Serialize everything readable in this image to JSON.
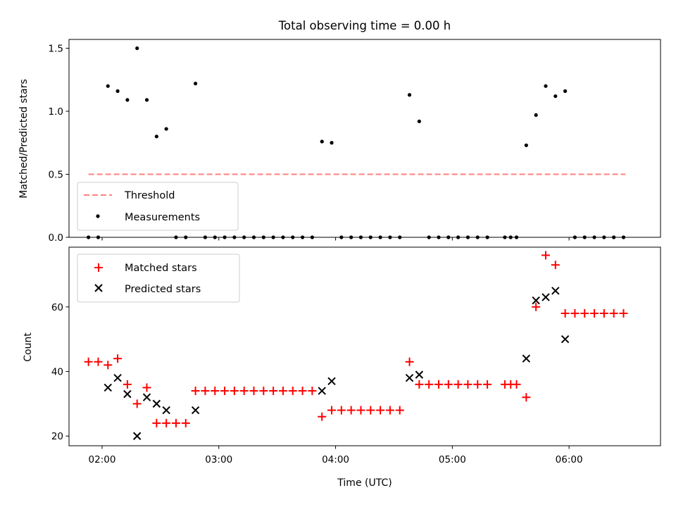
{
  "chart_data": [
    {
      "type": "scatter",
      "title": "Total observing time = 0.00 h",
      "xlabel": "",
      "ylabel": "Matched/Predicted stars",
      "xlim": [
        "01:43",
        "06:47"
      ],
      "ylim": [
        0,
        1.57
      ],
      "yticks": [
        0.0,
        0.5,
        1.0,
        1.5
      ],
      "ytick_labels": [
        "0.0",
        "0.5",
        "1.0",
        "1.5"
      ],
      "grid": false,
      "legend_position": "lower-left",
      "threshold": {
        "name": "Threshold",
        "value": 0.5,
        "x_range": [
          "01:53",
          "06:29"
        ],
        "color": "#ff7f7f",
        "style": "dashed"
      },
      "series": [
        {
          "name": "Measurements",
          "color": "#000000",
          "marker": "dot",
          "points": [
            [
              "01:53",
              0
            ],
            [
              "01:58",
              0
            ],
            [
              "02:03",
              1.2
            ],
            [
              "02:08",
              1.16
            ],
            [
              "02:13",
              1.09
            ],
            [
              "02:18",
              1.5
            ],
            [
              "02:23",
              1.09
            ],
            [
              "02:28",
              0.8
            ],
            [
              "02:33",
              0.86
            ],
            [
              "02:38",
              0
            ],
            [
              "02:43",
              0
            ],
            [
              "02:48",
              1.22
            ],
            [
              "02:53",
              0
            ],
            [
              "02:58",
              0
            ],
            [
              "03:03",
              0
            ],
            [
              "03:08",
              0
            ],
            [
              "03:13",
              0
            ],
            [
              "03:18",
              0
            ],
            [
              "03:23",
              0
            ],
            [
              "03:28",
              0
            ],
            [
              "03:33",
              0
            ],
            [
              "03:38",
              0
            ],
            [
              "03:43",
              0
            ],
            [
              "03:48",
              0
            ],
            [
              "03:53",
              0.76
            ],
            [
              "03:58",
              0.75
            ],
            [
              "04:03",
              0
            ],
            [
              "04:08",
              0
            ],
            [
              "04:13",
              0
            ],
            [
              "04:18",
              0
            ],
            [
              "04:23",
              0
            ],
            [
              "04:28",
              0
            ],
            [
              "04:33",
              0
            ],
            [
              "04:38",
              1.13
            ],
            [
              "04:43",
              0.92
            ],
            [
              "04:48",
              0
            ],
            [
              "04:53",
              0
            ],
            [
              "04:58",
              0
            ],
            [
              "05:03",
              0
            ],
            [
              "05:08",
              0
            ],
            [
              "05:13",
              0
            ],
            [
              "05:18",
              0
            ],
            [
              "05:27",
              0
            ],
            [
              "05:30",
              0
            ],
            [
              "05:33",
              0
            ],
            [
              "05:38",
              0.73
            ],
            [
              "05:43",
              0.97
            ],
            [
              "05:48",
              1.2
            ],
            [
              "05:53",
              1.12
            ],
            [
              "05:58",
              1.16
            ],
            [
              "06:03",
              0
            ],
            [
              "06:08",
              0
            ],
            [
              "06:13",
              0
            ],
            [
              "06:18",
              0
            ],
            [
              "06:23",
              0
            ],
            [
              "06:28",
              0
            ]
          ]
        }
      ]
    },
    {
      "type": "scatter",
      "title": "",
      "xlabel": "Time (UTC)",
      "ylabel": "Count",
      "xlim": [
        "01:43",
        "06:47"
      ],
      "ylim": [
        17,
        78.5
      ],
      "yticks": [
        20,
        40,
        60
      ],
      "ytick_labels": [
        "20",
        "40",
        "60"
      ],
      "xticks": [
        "02:00",
        "03:00",
        "04:00",
        "05:00",
        "06:00"
      ],
      "xtick_labels": [
        "02:00",
        "03:00",
        "04:00",
        "05:00",
        "06:00"
      ],
      "grid": false,
      "legend_position": "upper-left",
      "series": [
        {
          "name": "Matched stars",
          "color": "#ff0000",
          "marker": "plus",
          "points": [
            [
              "01:53",
              43
            ],
            [
              "01:58",
              43
            ],
            [
              "02:03",
              42
            ],
            [
              "02:08",
              44
            ],
            [
              "02:13",
              36
            ],
            [
              "02:18",
              30
            ],
            [
              "02:23",
              35
            ],
            [
              "02:28",
              24
            ],
            [
              "02:33",
              24
            ],
            [
              "02:38",
              24
            ],
            [
              "02:43",
              24
            ],
            [
              "02:48",
              34
            ],
            [
              "02:53",
              34
            ],
            [
              "02:58",
              34
            ],
            [
              "03:03",
              34
            ],
            [
              "03:08",
              34
            ],
            [
              "03:13",
              34
            ],
            [
              "03:18",
              34
            ],
            [
              "03:23",
              34
            ],
            [
              "03:28",
              34
            ],
            [
              "03:33",
              34
            ],
            [
              "03:38",
              34
            ],
            [
              "03:43",
              34
            ],
            [
              "03:48",
              34
            ],
            [
              "03:53",
              26
            ],
            [
              "03:58",
              28
            ],
            [
              "04:03",
              28
            ],
            [
              "04:08",
              28
            ],
            [
              "04:13",
              28
            ],
            [
              "04:18",
              28
            ],
            [
              "04:23",
              28
            ],
            [
              "04:28",
              28
            ],
            [
              "04:33",
              28
            ],
            [
              "04:38",
              43
            ],
            [
              "04:43",
              36
            ],
            [
              "04:48",
              36
            ],
            [
              "04:53",
              36
            ],
            [
              "04:58",
              36
            ],
            [
              "05:03",
              36
            ],
            [
              "05:08",
              36
            ],
            [
              "05:13",
              36
            ],
            [
              "05:18",
              36
            ],
            [
              "05:27",
              36
            ],
            [
              "05:30",
              36
            ],
            [
              "05:33",
              36
            ],
            [
              "05:38",
              32
            ],
            [
              "05:43",
              60
            ],
            [
              "05:48",
              76
            ],
            [
              "05:53",
              73
            ],
            [
              "05:58",
              58
            ],
            [
              "06:03",
              58
            ],
            [
              "06:08",
              58
            ],
            [
              "06:13",
              58
            ],
            [
              "06:18",
              58
            ],
            [
              "06:23",
              58
            ],
            [
              "06:28",
              58
            ]
          ]
        },
        {
          "name": "Predicted stars",
          "color": "#000000",
          "marker": "x",
          "points": [
            [
              "02:03",
              35
            ],
            [
              "02:08",
              38
            ],
            [
              "02:13",
              33
            ],
            [
              "02:18",
              20
            ],
            [
              "02:23",
              32
            ],
            [
              "02:28",
              30
            ],
            [
              "02:33",
              28
            ],
            [
              "02:48",
              28
            ],
            [
              "03:53",
              34
            ],
            [
              "03:58",
              37
            ],
            [
              "04:38",
              38
            ],
            [
              "04:43",
              39
            ],
            [
              "05:38",
              44
            ],
            [
              "05:43",
              62
            ],
            [
              "05:48",
              63
            ],
            [
              "05:53",
              65
            ],
            [
              "05:58",
              50
            ]
          ]
        }
      ]
    }
  ]
}
